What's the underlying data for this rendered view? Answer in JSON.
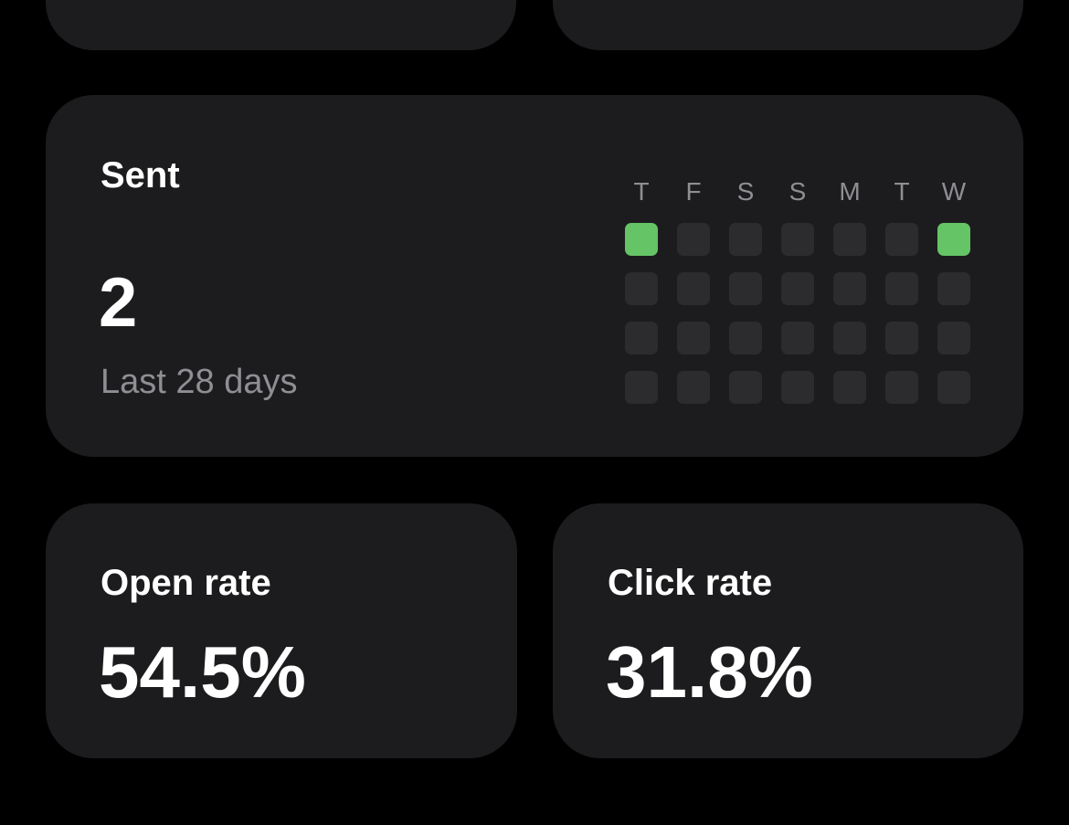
{
  "sent": {
    "title": "Sent",
    "value": "2",
    "subtitle": "Last 28 days",
    "days": [
      "T",
      "F",
      "S",
      "S",
      "M",
      "T",
      "W"
    ],
    "activity": [
      [
        1,
        0,
        0,
        0,
        0,
        0,
        1
      ],
      [
        0,
        0,
        0,
        0,
        0,
        0,
        0
      ],
      [
        0,
        0,
        0,
        0,
        0,
        0,
        0
      ],
      [
        0,
        0,
        0,
        0,
        0,
        0,
        0
      ]
    ]
  },
  "open_rate": {
    "title": "Open rate",
    "value": "54.5%"
  },
  "click_rate": {
    "title": "Click rate",
    "value": "31.8%"
  }
}
